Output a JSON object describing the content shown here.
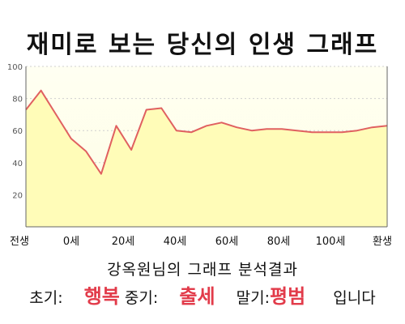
{
  "title": "재미로 보는 당신의 인생 그래프",
  "subtitle": "강옥원님의 그래프 분석결과",
  "summary": {
    "early_label": "초기:",
    "early_value": "행복",
    "mid_label": "중기:",
    "mid_value": "출세",
    "late_label": "말기:",
    "late_value": "평범",
    "suffix": "입니다"
  },
  "colors": {
    "fill": "#fffcb8",
    "line": "#e06060",
    "grid": "#cfcfcf",
    "highlight": "#e23b4a"
  },
  "chart_data": {
    "type": "area",
    "title": "재미로 보는 당신의 인생 그래프",
    "xlabel": "",
    "ylabel": "",
    "ylim": [
      0,
      100
    ],
    "yticks": [
      20,
      40,
      60,
      80,
      100
    ],
    "grid": true,
    "x_tick_labels": [
      "전생",
      "0세",
      "20세",
      "40세",
      "60세",
      "80세",
      "100세",
      "환생"
    ],
    "series": [
      {
        "x": [
          "전생",
          "0세",
          "5세",
          "10세",
          "15세",
          "20세",
          "25세",
          "30세",
          "35세",
          "40세",
          "45세",
          "50세",
          "55세",
          "60세",
          "65세",
          "70세",
          "75세",
          "80세",
          "85세",
          "90세",
          "95세",
          "100세",
          "105세",
          "110세",
          "환생"
        ],
        "values": [
          73,
          85,
          70,
          55,
          47,
          33,
          63,
          48,
          73,
          74,
          60,
          59,
          63,
          65,
          62,
          60,
          61,
          61,
          60,
          59,
          59,
          59,
          60,
          62,
          63
        ]
      }
    ]
  }
}
